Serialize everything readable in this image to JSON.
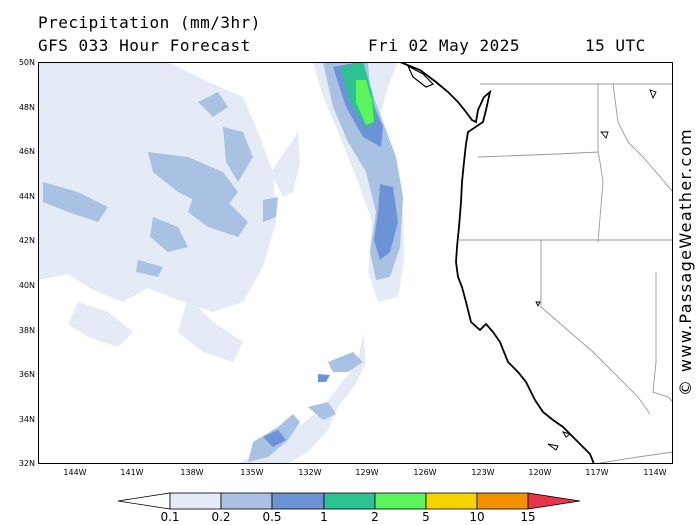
{
  "header": {
    "title": "Precipitation (mm/3hr)",
    "model": "GFS 033 Hour Forecast",
    "date": "Fri 02 May 2025",
    "time": "15 UTC"
  },
  "map": {
    "lat_labels": [
      "50N",
      "48N",
      "46N",
      "44N",
      "42N",
      "40N",
      "38N",
      "36N",
      "34N",
      "32N"
    ],
    "lon_labels": [
      "144W",
      "141W",
      "138W",
      "135W",
      "132W",
      "129W",
      "126W",
      "123W",
      "120W",
      "117W",
      "114W"
    ]
  },
  "legend": {
    "labels": [
      "0.1",
      "0.2",
      "0.5",
      "1",
      "2",
      "5",
      "10",
      "15"
    ],
    "colors": [
      "#e4ebf6",
      "#a9c1e2",
      "#6b93d6",
      "#2cc291",
      "#5df55d",
      "#f5d400",
      "#f59000",
      "#e8354a"
    ]
  },
  "credit": "© www.PassageWeather.com"
}
